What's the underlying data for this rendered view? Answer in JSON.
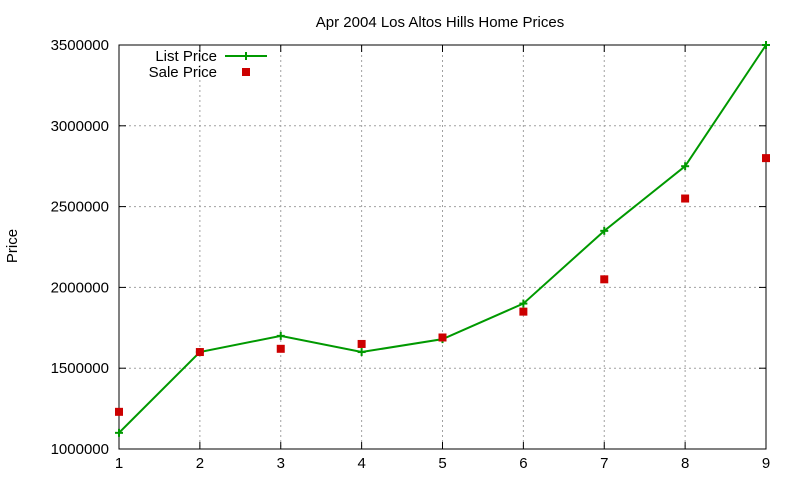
{
  "chart_data": {
    "type": "line",
    "title": "Apr 2004 Los Altos Hills Home Prices",
    "xlabel": "",
    "ylabel": "Price",
    "x": [
      1,
      2,
      3,
      4,
      5,
      6,
      7,
      8,
      9
    ],
    "xlim": [
      1,
      9
    ],
    "ylim": [
      1000000,
      3500000
    ],
    "xticks": [
      1,
      2,
      3,
      4,
      5,
      6,
      7,
      8,
      9
    ],
    "yticks": [
      1000000,
      1500000,
      2000000,
      2500000,
      3000000,
      3500000
    ],
    "grid": true,
    "legend_position": "top-left",
    "series": [
      {
        "name": "List Price",
        "style": "line-with-plus-markers",
        "color": "#009900",
        "values": [
          1100000,
          1600000,
          1700000,
          1600000,
          1680000,
          1900000,
          2350000,
          2750000,
          3500000
        ]
      },
      {
        "name": "Sale Price",
        "style": "square-markers",
        "color": "#cc0000",
        "values": [
          1230000,
          1600000,
          1620000,
          1650000,
          1690000,
          1850000,
          2050000,
          2550000,
          2800000
        ]
      }
    ]
  }
}
